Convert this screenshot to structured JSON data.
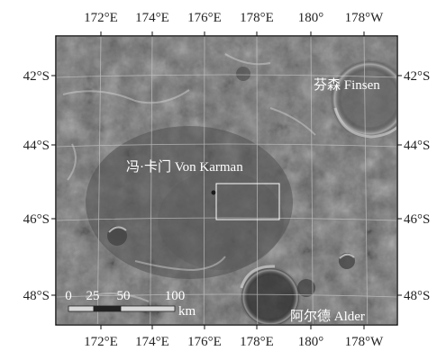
{
  "map": {
    "top_lon_labels": [
      "172°E",
      "174°E",
      "176°E",
      "178°E",
      "180°",
      "178°W"
    ],
    "bottom_lon_labels": [
      "172°E",
      "174°E",
      "176°E",
      "178°E",
      "180°",
      "178°W"
    ],
    "left_lat_labels": [
      "42°S",
      "44°S",
      "46°S",
      "48°S"
    ],
    "right_lat_labels": [
      "42°S",
      "44°S",
      "46°S",
      "48°S"
    ],
    "places": {
      "finsen": "芬森 Finsen",
      "von_karman": "冯·卡门 Von Karman",
      "alder": "阿尔德 Alder"
    },
    "scale": {
      "ticks": [
        "0",
        "25",
        "50",
        "100"
      ],
      "unit": "km"
    },
    "colors": {
      "terrain_base": "#6e6e6e",
      "graticule": "#c8c8c8",
      "label": "#ffffff"
    }
  }
}
